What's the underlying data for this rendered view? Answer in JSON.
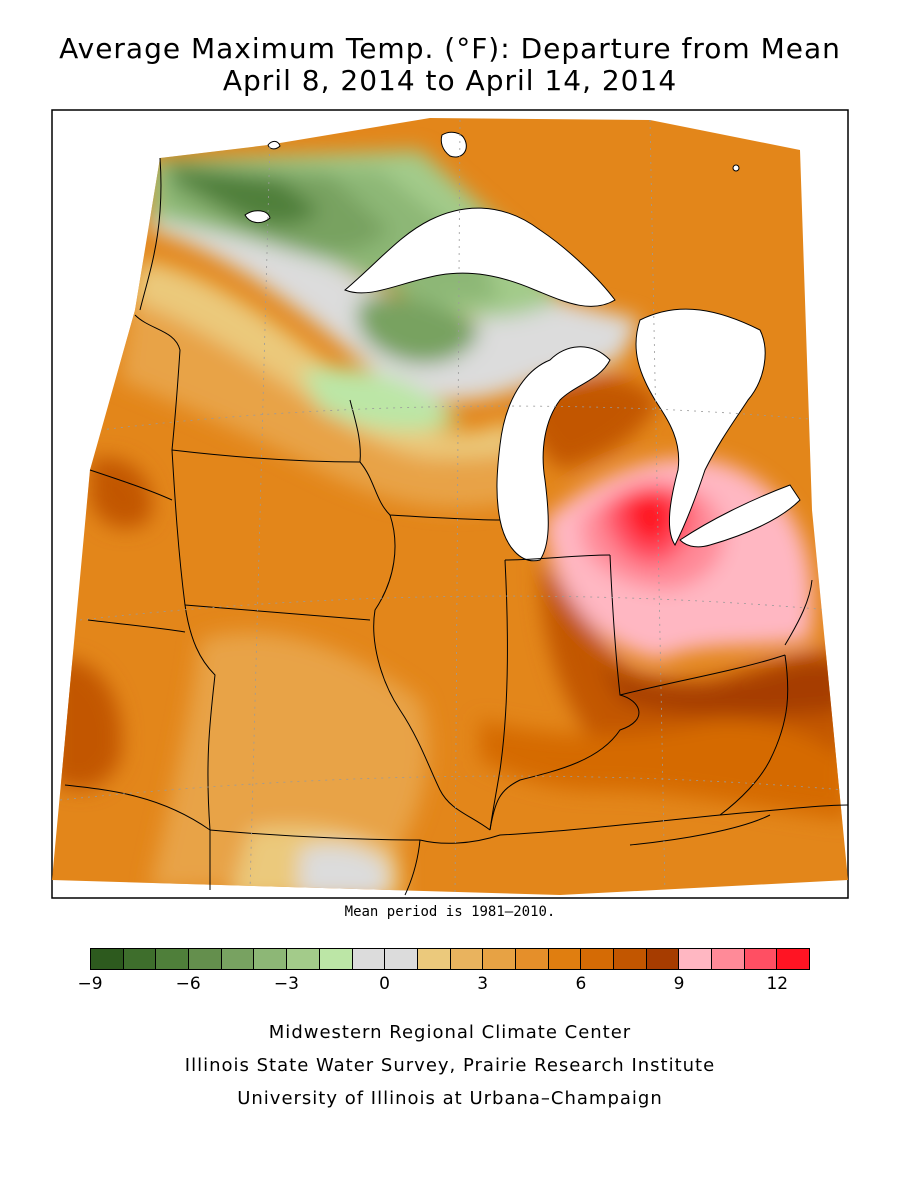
{
  "title": {
    "line1": "Average Maximum Temp. (°F): Departure from Mean",
    "line2": "April 8, 2014 to April 14, 2014"
  },
  "mean_note": "Mean period is 1981–2010.",
  "legend": {
    "colors": [
      "#2d5a1e",
      "#3e6e2c",
      "#4f7f3a",
      "#648f4d",
      "#78a261",
      "#8db776",
      "#a3cb8a",
      "#bce6a6",
      "#dcdcdc",
      "#dcdcdc",
      "#ebc97c",
      "#e9b35e",
      "#e7a244",
      "#e58f2a",
      "#e07e10",
      "#d56b05",
      "#c25600",
      "#a63c00",
      "#ffb7c2",
      "#ff8a98",
      "#ff4f63",
      "#ff1423"
    ],
    "ticks": [
      "−9",
      "−6",
      "−3",
      "0",
      "3",
      "6",
      "9",
      "12"
    ],
    "tick_values": [
      -9,
      -6,
      -3,
      0,
      3,
      6,
      9,
      12
    ],
    "min": -9,
    "max": 13
  },
  "credits": {
    "line1": "Midwestern Regional Climate Center",
    "line2": "Illinois State Water Survey, Prairie Research Institute",
    "line3": "University of Illinois at Urbana–Champaign"
  }
}
